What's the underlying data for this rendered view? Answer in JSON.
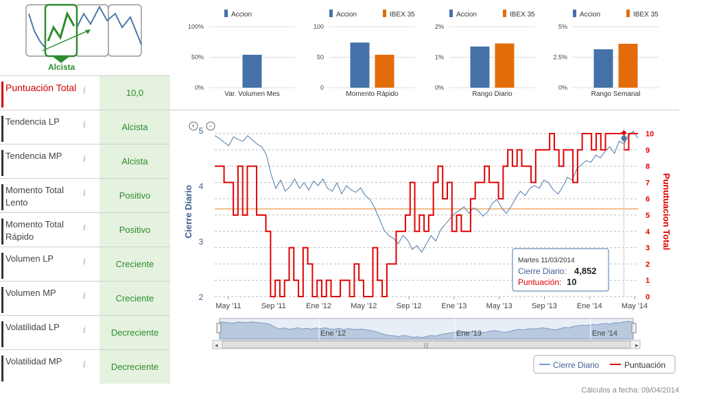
{
  "trend": {
    "label": "Alcista"
  },
  "rows": [
    {
      "label": "Puntuación Total",
      "value": "10,0"
    },
    {
      "label": "Tendencia LP",
      "value": "Alcista"
    },
    {
      "label": "Tendencia MP",
      "value": "Alcista"
    },
    {
      "label": "Momento Total Lento",
      "value": "Positivo"
    },
    {
      "label": "Momento Total Rápido",
      "value": "Positivo"
    },
    {
      "label": "Volumen LP",
      "value": "Creciente"
    },
    {
      "label": "Volumen MP",
      "value": "Creciente"
    },
    {
      "label": "Volatilidad LP",
      "value": "Decreciente"
    },
    {
      "label": "Volatilidad MP",
      "value": "Decreciente"
    }
  ],
  "info_icon": "info-icon",
  "colors": {
    "accion": "#4472a8",
    "ibex": "#e36c0a",
    "price": "#4a78a8",
    "score": "#e00000",
    "green": "#2e8b2e",
    "red": "#cc0000"
  },
  "chart_data": [
    {
      "type": "bar",
      "title": "Var. Volumen Mes",
      "series": [
        {
          "name": "Accion",
          "values": [
            54
          ]
        }
      ],
      "yticks": [
        "0%",
        "50%",
        "100%"
      ],
      "ylim": [
        0,
        100
      ]
    },
    {
      "type": "bar",
      "title": "Momento Rápido",
      "series": [
        {
          "name": "Accion",
          "values": [
            74
          ]
        },
        {
          "name": "IBEX 35",
          "values": [
            54
          ]
        }
      ],
      "yticks": [
        "0",
        "50",
        "100"
      ],
      "ylim": [
        0,
        100
      ]
    },
    {
      "type": "bar",
      "title": "Rango Diario",
      "series": [
        {
          "name": "Accion",
          "values": [
            1.35
          ]
        },
        {
          "name": "IBEX 35",
          "values": [
            1.45
          ]
        }
      ],
      "yticks": [
        "0%",
        "1%",
        "2%"
      ],
      "ylim": [
        0,
        2
      ]
    },
    {
      "type": "bar",
      "title": "Rango Semanal",
      "series": [
        {
          "name": "Accion",
          "values": [
            3.15
          ]
        },
        {
          "name": "IBEX 35",
          "values": [
            3.6
          ]
        }
      ],
      "yticks": [
        "0%",
        "2.5%",
        "5%"
      ],
      "ylim": [
        0,
        5
      ]
    },
    {
      "type": "line",
      "ylabel": "Cierre Diario",
      "y2label": "Punutuacion Total",
      "ylim": [
        2,
        5
      ],
      "y2lim": [
        0,
        10
      ],
      "yticks": [
        2,
        3,
        4,
        5
      ],
      "y2ticks": [
        0,
        1,
        2,
        3,
        4,
        5,
        6,
        7,
        8,
        9,
        10
      ],
      "xlabels": [
        "May '11",
        "Sep '11",
        "Ene '12",
        "May '12",
        "Sep '12",
        "Ene '13",
        "May '13",
        "Sep '13",
        "Ene '14",
        "May '14"
      ],
      "navigator_labels": [
        "Ene '12",
        "Ene '13",
        "Ene '14"
      ],
      "reference_line": 3.58,
      "price": [
        4.9,
        4.85,
        4.78,
        4.72,
        4.88,
        4.83,
        4.8,
        4.9,
        4.82,
        4.75,
        4.7,
        4.55,
        4.2,
        3.95,
        4.1,
        3.9,
        3.98,
        4.12,
        3.95,
        4.05,
        3.92,
        4.08,
        4.0,
        4.12,
        3.95,
        3.9,
        4.05,
        3.85,
        4.0,
        3.92,
        3.88,
        3.96,
        3.82,
        3.75,
        3.6,
        3.4,
        3.2,
        3.1,
        3.05,
        2.95,
        3.1,
        3.02,
        2.85,
        2.92,
        2.8,
        2.95,
        3.1,
        3.0,
        3.2,
        3.3,
        3.4,
        3.5,
        3.55,
        3.62,
        3.5,
        3.6,
        3.55,
        3.45,
        3.52,
        3.68,
        3.75,
        3.6,
        3.5,
        3.62,
        3.78,
        3.9,
        3.82,
        3.95,
        4.0,
        3.95,
        4.1,
        4.05,
        3.92,
        3.85,
        3.98,
        4.15,
        4.1,
        4.3,
        4.38,
        4.45,
        4.42,
        4.55,
        4.5,
        4.62,
        4.7,
        4.58,
        4.8,
        4.75,
        4.9,
        4.98,
        4.85
      ],
      "score": [
        8,
        8,
        7,
        7,
        5,
        8,
        5,
        8,
        8,
        5,
        5,
        4,
        0,
        1,
        0,
        1,
        3,
        1,
        0,
        3,
        2,
        0,
        1,
        0,
        1,
        0,
        0,
        1,
        1,
        0,
        2,
        1,
        0,
        0,
        3,
        1,
        0,
        2,
        2,
        4,
        4,
        5,
        7,
        4,
        5,
        4,
        5,
        7,
        8,
        6,
        7,
        4,
        5,
        4,
        4,
        6,
        7,
        7,
        8,
        7,
        7,
        6,
        8,
        9,
        8,
        9,
        8,
        8,
        7,
        9,
        9,
        9,
        10,
        9,
        8,
        9,
        9,
        7,
        9,
        10,
        10,
        9,
        10,
        9,
        10,
        10,
        10,
        10,
        9,
        10,
        10
      ],
      "tooltip": {
        "date": "Martes 11/03/2014",
        "series1": "Cierre Diario:",
        "value1": "4,852",
        "series2": "Puntuación:",
        "value2": "10"
      },
      "legend": [
        "Cierre Diario",
        "Puntuación"
      ]
    }
  ],
  "footer": "Cálculos a fecha: 09/04/2014"
}
